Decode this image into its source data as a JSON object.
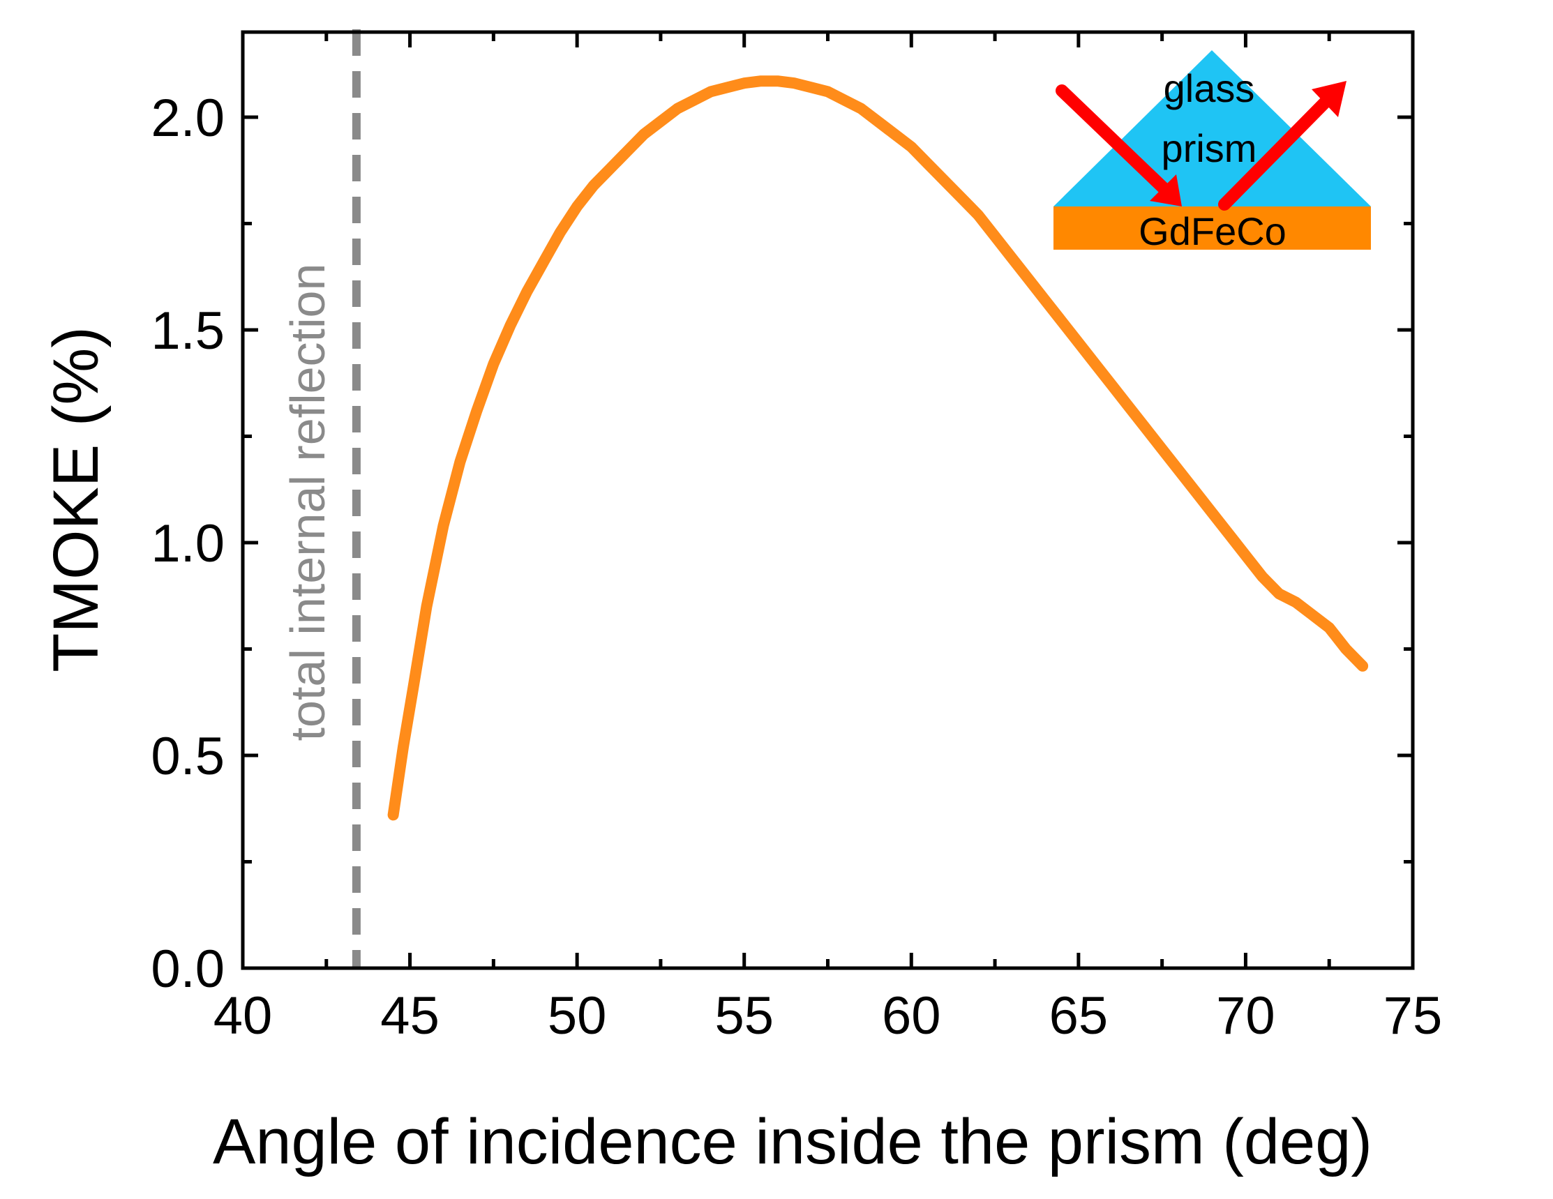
{
  "chart_data": {
    "type": "line",
    "title": "",
    "xlabel": "Angle of incidence inside the prism (deg)",
    "ylabel": "TMOKE (%)",
    "xlim": [
      40,
      75
    ],
    "ylim": [
      0.0,
      2.2
    ],
    "xticks": [
      40,
      45,
      50,
      55,
      60,
      65,
      70,
      75
    ],
    "xtick_labels": [
      "40",
      "45",
      "50",
      "55",
      "60",
      "65",
      "70",
      "75"
    ],
    "yticks": [
      0.0,
      0.5,
      1.0,
      1.5,
      2.0
    ],
    "ytick_labels": [
      "0.0",
      "0.5",
      "1.0",
      "1.5",
      "2.0"
    ],
    "grid": false,
    "series": [
      {
        "name": "TMOKE",
        "color": "#ff8c1a",
        "x": [
          44.5,
          44.8,
          45.1,
          45.5,
          46.0,
          46.5,
          47.0,
          47.5,
          48.0,
          48.5,
          49.0,
          49.5,
          50.0,
          50.5,
          51.0,
          51.5,
          52.0,
          52.5,
          53.0,
          53.5,
          54.0,
          54.5,
          55.0,
          55.5,
          56.0,
          56.5,
          57.0,
          57.5,
          58.0,
          58.5,
          59.0,
          59.5,
          60.0,
          60.5,
          61.0,
          61.5,
          62.0,
          62.5,
          63.0,
          63.5,
          64.0,
          64.5,
          65.0,
          65.5,
          66.0,
          66.5,
          67.0,
          67.5,
          68.0,
          68.5,
          69.0,
          69.5,
          70.0,
          70.5,
          71.0,
          71.5,
          72.0,
          72.5,
          73.0,
          73.5
        ],
        "y": [
          0.36,
          0.52,
          0.66,
          0.85,
          1.04,
          1.19,
          1.31,
          1.42,
          1.51,
          1.59,
          1.66,
          1.73,
          1.79,
          1.84,
          1.88,
          1.92,
          1.96,
          1.99,
          2.02,
          2.04,
          2.06,
          2.07,
          2.08,
          2.085,
          2.085,
          2.08,
          2.07,
          2.06,
          2.04,
          2.02,
          1.99,
          1.96,
          1.93,
          1.89,
          1.85,
          1.81,
          1.77,
          1.72,
          1.67,
          1.62,
          1.57,
          1.52,
          1.47,
          1.42,
          1.37,
          1.32,
          1.27,
          1.22,
          1.17,
          1.12,
          1.07,
          1.02,
          0.97,
          0.92,
          0.88,
          0.86,
          0.83,
          0.8,
          0.75,
          0.71
        ]
      }
    ],
    "vline": {
      "x": 43.4,
      "style": "dashed",
      "color": "#8a8a8a",
      "label": "total internal reflection"
    },
    "inset": {
      "prism_label_line1": "glass",
      "prism_label_line2": "prism",
      "layer_label": "GdFeCo",
      "prism_color": "#1fc4f4",
      "layer_color": "#ff8800",
      "beam_color": "#ff0000"
    }
  }
}
